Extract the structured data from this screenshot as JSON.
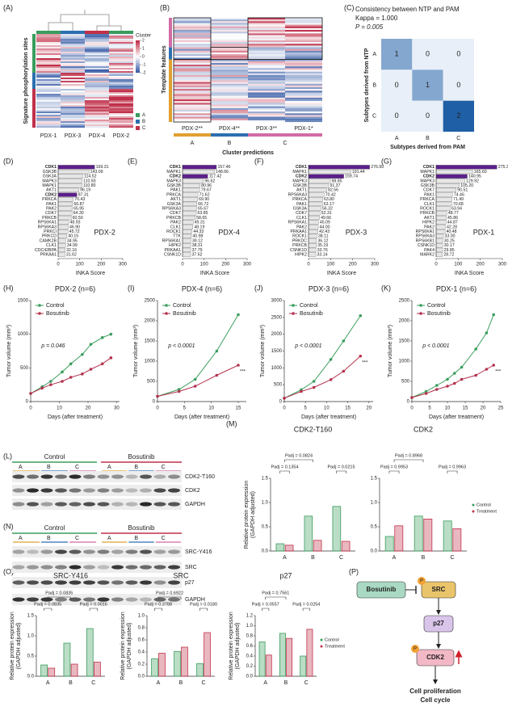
{
  "panel_labels": [
    "(A)",
    "(B)",
    "(C)",
    "(D)",
    "(E)",
    "(F)",
    "(G)",
    "(H)",
    "(I)",
    "(J)",
    "(K)",
    "(L)",
    "(M)",
    "(N)",
    "(O)",
    "(P)"
  ],
  "heatmap_a": {
    "columns": [
      "PDX-1",
      "PDX-3",
      "PDX-4",
      "PDX-2"
    ],
    "y_label": "Signature phosphorylation sites",
    "legend_title": "Cluster",
    "legend_ticks": [
      2,
      1,
      0,
      -1,
      -2
    ],
    "clusters": [
      "A",
      "B",
      "C"
    ]
  },
  "heatmap_b": {
    "columns": [
      "PDX-2**",
      "PDX-4**",
      "PDX-3**",
      "PDX-1*"
    ],
    "groups": [
      "A",
      "B",
      "C"
    ],
    "y_label": "Template features",
    "x_label": "Cluster predictions"
  },
  "blot_l": {
    "groups": [
      "Control",
      "Bosutinib"
    ],
    "clusters": [
      "A",
      "B",
      "C"
    ],
    "proteins": [
      "CDK2-T160",
      "CDK2",
      "GAPDH"
    ]
  },
  "blot_n": {
    "groups": [
      "Control",
      "Bosutinib"
    ],
    "clusters": [
      "A",
      "B",
      "C"
    ],
    "proteins": [
      "SRC-Y416",
      "SRC",
      "p27",
      "GAPDH"
    ]
  },
  "diagram": {
    "nodes": [
      "Bosutinib",
      "SRC",
      "p27",
      "CDK2"
    ],
    "phospho": "P",
    "outcomes": [
      "Cell proliferation",
      "Cell cycle"
    ]
  },
  "chart_data": [
    {
      "type": "heatmap",
      "title": "Consistency between NTP and PAM",
      "annotations": [
        "Kappa = 1.000",
        "P = 0.005"
      ],
      "rows": [
        "A",
        "B",
        "C"
      ],
      "columns": [
        "A",
        "B",
        "C"
      ],
      "values": [
        [
          1,
          0,
          0
        ],
        [
          0,
          1,
          0
        ],
        [
          0,
          0,
          2
        ]
      ],
      "xlabel": "Subtypes derived from PAM",
      "ylabel": "Subtypes derived from NTP",
      "colors": [
        "#e8eff8",
        "#1f5fa5"
      ]
    },
    {
      "type": "barh",
      "label": "PDX-2",
      "categories": [
        "CDK1",
        "GSK3B",
        "GSK3A",
        "MAPK3",
        "MAPK1",
        "AKT1",
        "CDK2",
        "PRKCA",
        "PAK1",
        "PAK2",
        "CDK7",
        "PRKCB",
        "RPS6KA1",
        "RPS6KA3",
        "PRKCI",
        "PRKCD",
        "CAMK2B",
        "CLK1",
        "CDC42BPA",
        "PRKAA1"
      ],
      "values": [
        169.31,
        143.09,
        114.52,
        110.93,
        110.8,
        96.19,
        87.31,
        70.43,
        66.87,
        65.95,
        64.3,
        60.5,
        48.93,
        46.9,
        45.72,
        40.15,
        34.95,
        34.99,
        32.16,
        31.62
      ],
      "value_labels": [
        "169.31",
        "143.09",
        "114.52",
        "110.93",
        "110.80",
        "96.19",
        "87.31",
        "70.43",
        "66.87",
        "65.95",
        "64.30",
        "60.50",
        "48.93",
        "46.90",
        "45.72",
        "40.15",
        "34.95",
        "34.99",
        "32.16",
        "31.62"
      ],
      "color": "#e6e6e6",
      "highlight": [
        0,
        6
      ],
      "highlight_color": "#5b1f8a",
      "xlim": [
        0,
        300
      ],
      "xticks": [
        0,
        100,
        200,
        300
      ],
      "xlabel": "INKA Score"
    },
    {
      "type": "barh",
      "label": "PDX-4",
      "categories": [
        "CDK1",
        "MAPK1",
        "CDK2",
        "MAPK3",
        "GSK3B",
        "PAK1",
        "PRKCA",
        "AKT1",
        "GSK3A",
        "RPS6KA3",
        "CDK7",
        "PRKCB",
        "PAK2",
        "CLK1",
        "ROCK1",
        "TTK",
        "RPS6KA1",
        "HIPK2",
        "PRKAA1",
        "CSNK1D"
      ],
      "values": [
        157.46,
        148.66,
        117.42,
        96.62,
        80.96,
        79.67,
        71.62,
        69.9,
        66.72,
        65.67,
        63.85,
        58.65,
        49.31,
        48.19,
        44.33,
        40.98,
        39.12,
        38.31,
        37.79,
        37.62
      ],
      "value_labels": [
        "157.46",
        "148.66",
        "117.42",
        "96.62",
        "80.96",
        "79.67",
        "71.62",
        "69.90",
        "66.72",
        "65.67",
        "63.85",
        "58.65",
        "49.31",
        "48.19",
        "44.33",
        "40.98",
        "39.12",
        "38.31",
        "37.79",
        "37.62"
      ],
      "color": "#e6e6e6",
      "highlight": [
        0,
        2
      ],
      "highlight_color": "#5b1f8a",
      "xlim": [
        0,
        300
      ],
      "xticks": [
        0,
        100,
        200,
        300
      ],
      "xlabel": "INKA Score"
    },
    {
      "type": "barh",
      "label": "PDX-3",
      "categories": [
        "CDK1",
        "MAPK1",
        "CDK2",
        "MAPK3",
        "GSK3B",
        "AKT1",
        "RPS6KA3",
        "PRKCA",
        "PAK1",
        "GSK3A",
        "CDK7",
        "CLK1",
        "RPS6KA1",
        "PAK2",
        "PRKAA1",
        "ROCK1",
        "PRKDC",
        "PRKCB",
        "CSNK1D",
        "HIPK2"
      ],
      "values": [
        276.99,
        191.44,
        159.74,
        98.85,
        91.37,
        82.56,
        70.42,
        63.8,
        63.17,
        56.32,
        52.31,
        49.66,
        45.09,
        44,
        42.43,
        38.11,
        36.12,
        35.19,
        33.76,
        33.14
      ],
      "value_labels": [
        "276.99",
        "191.44",
        "159.74",
        "98.85",
        "91.37",
        "82.56",
        "70.42",
        "63.80",
        "63.17",
        "56.32",
        "52.31",
        "49.66",
        "45.09",
        "44.00",
        "42.43",
        "38.11",
        "36.12",
        "35.19",
        "33.76",
        "33.14"
      ],
      "color": "#e6e6e6",
      "highlight": [
        0,
        2
      ],
      "highlight_color": "#5b1f8a",
      "xlim": [
        0,
        300
      ],
      "xticks": [
        0,
        100,
        200,
        300
      ],
      "xlabel": "INKA Score"
    },
    {
      "type": "barh",
      "label": "PDX-1",
      "categories": [
        "CDK1",
        "MAPK1",
        "CDK2",
        "MAPK3",
        "GSK3B",
        "CDK7",
        "PAK1",
        "PRKCA",
        "CLK1",
        "ROCK1",
        "PRKCB",
        "AKT1",
        "HIPK2",
        "PAK2",
        "RPS6KA1",
        "RPS6KA3",
        "RPS6KB1",
        "CSNK1D",
        "PAK4",
        "MARK2"
      ],
      "values": [
        275.36,
        165.6,
        140.95,
        129.92,
        105.2,
        90.51,
        74.46,
        71.49,
        70.68,
        63.94,
        48.77,
        45.86,
        44.87,
        42.28,
        40.48,
        33,
        30.25,
        30.17,
        29.85,
        28.72
      ],
      "value_labels": [
        "275.36",
        "165.60",
        "140.95",
        "129.92",
        "105.20",
        "90.51",
        "74.46",
        "71.49",
        "70.68",
        "63.94",
        "48.77",
        "45.86",
        "44.87",
        "42.28",
        "40.48",
        "33.00",
        "30.25",
        "30.17",
        "29.85",
        "28.72"
      ],
      "color": "#e6e6e6",
      "highlight": [
        0,
        2
      ],
      "highlight_color": "#5b1f8a",
      "xlim": [
        0,
        300
      ],
      "xticks": [
        0,
        100,
        200,
        300
      ],
      "xlabel": "INKA Score"
    },
    {
      "type": "line",
      "title": "PDX-2 (n=6)",
      "x": [
        0,
        4,
        7,
        11,
        14,
        18,
        21,
        25,
        28
      ],
      "series": [
        {
          "name": "Control",
          "color": "#3a9d5d",
          "values": [
            120,
            220,
            300,
            440,
            560,
            700,
            850,
            950,
            1000
          ]
        },
        {
          "name": "Bosutinib",
          "color": "#b5334f",
          "values": [
            120,
            200,
            250,
            300,
            360,
            410,
            480,
            560,
            650
          ]
        }
      ],
      "xlim": [
        0,
        31
      ],
      "xticks": [
        0,
        10,
        20,
        30
      ],
      "ylim": [
        0,
        1500
      ],
      "yticks": [
        0,
        500,
        1000,
        1500
      ],
      "xlabel": "Days (after treatment)",
      "ylabel": "Tumor volume (mm³)",
      "annotations": [
        "p = 0.046"
      ]
    },
    {
      "type": "line",
      "title": "PDX-4 (n=6)",
      "x": [
        0,
        4,
        7,
        11,
        15
      ],
      "series": [
        {
          "name": "Control",
          "color": "#3a9d5d",
          "values": [
            130,
            300,
            550,
            1250,
            2150
          ]
        },
        {
          "name": "Bosutinib",
          "color": "#b5334f",
          "values": [
            130,
            250,
            380,
            650,
            900
          ]
        }
      ],
      "xlim": [
        0,
        16.5
      ],
      "xticks": [
        0,
        5,
        10,
        15
      ],
      "ylim": [
        0,
        2500
      ],
      "yticks": [
        0,
        500,
        1000,
        1500,
        2000,
        2500
      ],
      "xlabel": "Days (after treatment)",
      "ylabel": "Tumor volume (mm³)",
      "annotations": [
        "p < 0.0001",
        "***"
      ]
    },
    {
      "type": "line",
      "title": "PDX-3 (n=6)",
      "x": [
        0,
        4,
        7,
        11,
        14,
        18
      ],
      "series": [
        {
          "name": "Control",
          "color": "#3a9d5d",
          "values": [
            100,
            350,
            600,
            1250,
            1800,
            2550
          ]
        },
        {
          "name": "Bosutinib",
          "color": "#b5334f",
          "values": [
            100,
            300,
            420,
            650,
            900,
            1350
          ]
        }
      ],
      "xlim": [
        0,
        21
      ],
      "xticks": [
        0,
        5,
        10,
        15,
        20
      ],
      "ylim": [
        0,
        3000
      ],
      "yticks": [
        0,
        500,
        1000,
        1500,
        2000,
        2500,
        3000
      ],
      "xlabel": "Days (after treatment)",
      "ylabel": "Tumor volume (mm³)",
      "annotations": [
        "p < 0.0001",
        "***"
      ]
    },
    {
      "type": "line",
      "title": "PDX-1 (n=6)",
      "x": [
        0,
        4,
        7,
        10,
        12,
        14,
        18,
        21,
        23
      ],
      "series": [
        {
          "name": "Control",
          "color": "#3a9d5d",
          "values": [
            100,
            250,
            400,
            550,
            700,
            850,
            1300,
            1700,
            2150
          ]
        },
        {
          "name": "Bosutinib",
          "color": "#b5334f",
          "values": [
            100,
            200,
            300,
            380,
            450,
            550,
            650,
            800,
            900
          ]
        }
      ],
      "xlim": [
        0,
        25
      ],
      "xticks": [
        0,
        5,
        10,
        15,
        20,
        25
      ],
      "ylim": [
        0,
        2500
      ],
      "yticks": [
        0,
        500,
        1000,
        1500,
        2000,
        2500
      ],
      "xlabel": "Days (after treatment)",
      "ylabel": "Tumor volume (mm³)",
      "annotations": [
        "p < 0.0001",
        "***"
      ]
    },
    {
      "type": "bar",
      "title": "CDK2-T160",
      "categories": [
        "A",
        "B",
        "C"
      ],
      "series": [
        {
          "color": "#3a9d5d",
          "values": [
            0.15,
            0.72,
            0.92
          ]
        },
        {
          "color": "#c0304a",
          "values": [
            0.12,
            0.22,
            0.2
          ]
        }
      ],
      "ylim": [
        0,
        1.5
      ],
      "yticks": [
        {
          "value": 0,
          "label": "0.0"
        },
        0.5,
        {
          "value": 1,
          "label": "1.0"
        },
        1.5
      ],
      "ylabel": [
        "Relative protein expression",
        "(GAPDH adjusted)"
      ],
      "annotations": [
        "Padj = 0.1354",
        "Padj = 0.0824",
        "Padj = 0.0215"
      ]
    },
    {
      "type": "bar",
      "title": "CDK2",
      "categories": [
        "A",
        "B",
        "C"
      ],
      "series": [
        {
          "name": "Control",
          "color": "#3a9d5d",
          "values": [
            0.3,
            0.72,
            0.62
          ]
        },
        {
          "name": "Treatment",
          "color": "#c0304a",
          "values": [
            0.52,
            0.66,
            0.46
          ]
        }
      ],
      "ylim": [
        0,
        1.5
      ],
      "yticks": [
        {
          "value": 0,
          "label": "0.0"
        },
        0.5,
        {
          "value": 1,
          "label": "1.0"
        },
        1.5
      ],
      "annotations": [
        "Padj = 0.9953",
        "Padj = 0.8968",
        "Padj = 0.9963"
      ]
    },
    {
      "type": "bar",
      "title": "SRC-Y416",
      "categories": [
        "A",
        "B",
        "C"
      ],
      "series": [
        {
          "color": "#3a9d5d",
          "values": [
            0.28,
            0.82,
            1.18
          ]
        },
        {
          "color": "#c0304a",
          "values": [
            0.2,
            0.3,
            0.35
          ]
        }
      ],
      "ylim": [
        0,
        1.5
      ],
      "yticks": [
        {
          "value": 0,
          "label": "0.0"
        },
        0.5,
        {
          "value": 1,
          "label": "1.0"
        },
        1.5
      ],
      "ylabel": [
        "Relative protein expression",
        "(GAPDH adjusted)"
      ],
      "annotations": [
        "Padj = 0.0835",
        "Padj = 0.0835",
        "Padj = 0.0016"
      ]
    },
    {
      "type": "bar",
      "title": "SRC",
      "categories": [
        "A",
        "B",
        "C"
      ],
      "series": [
        {
          "color": "#3a9d5d",
          "values": [
            0.29,
            0.41,
            0.21
          ]
        },
        {
          "color": "#c0304a",
          "values": [
            0.38,
            0.48,
            0.72
          ]
        }
      ],
      "ylim": [
        0,
        1
      ],
      "yticks": [
        {
          "value": 0,
          "label": "0.0"
        },
        0.2,
        0.4,
        0.6,
        0.8,
        {
          "value": 1,
          "label": "1.0"
        }
      ],
      "ylabel": [
        "Relative protein expression",
        "(GAPDH adjusted)"
      ],
      "annotations": [
        "Padj = 0.3788",
        "Padj = 0.6922",
        "Padj = 0.0180"
      ]
    },
    {
      "type": "bar",
      "title": "p27",
      "categories": [
        "A",
        "B",
        "C"
      ],
      "series": [
        {
          "name": "Control",
          "color": "#3a9d5d",
          "values": [
            0.68,
            0.85,
            0.4
          ]
        },
        {
          "name": "Treatment",
          "color": "#c0304a",
          "values": [
            0.42,
            0.75,
            0.93
          ]
        }
      ],
      "ylim": [
        0,
        1.2
      ],
      "yticks": [
        {
          "value": 0,
          "label": "0.0"
        },
        0.2,
        0.4,
        0.6,
        0.8,
        {
          "value": 1,
          "label": "1.0"
        },
        1.2
      ],
      "ylabel": [
        "Relative protein expression",
        "(GAPDH adjusted)"
      ],
      "annotations": [
        "Padj = 0.0557",
        "Padj = 0.7561",
        "Padj = 0.0254"
      ]
    }
  ]
}
